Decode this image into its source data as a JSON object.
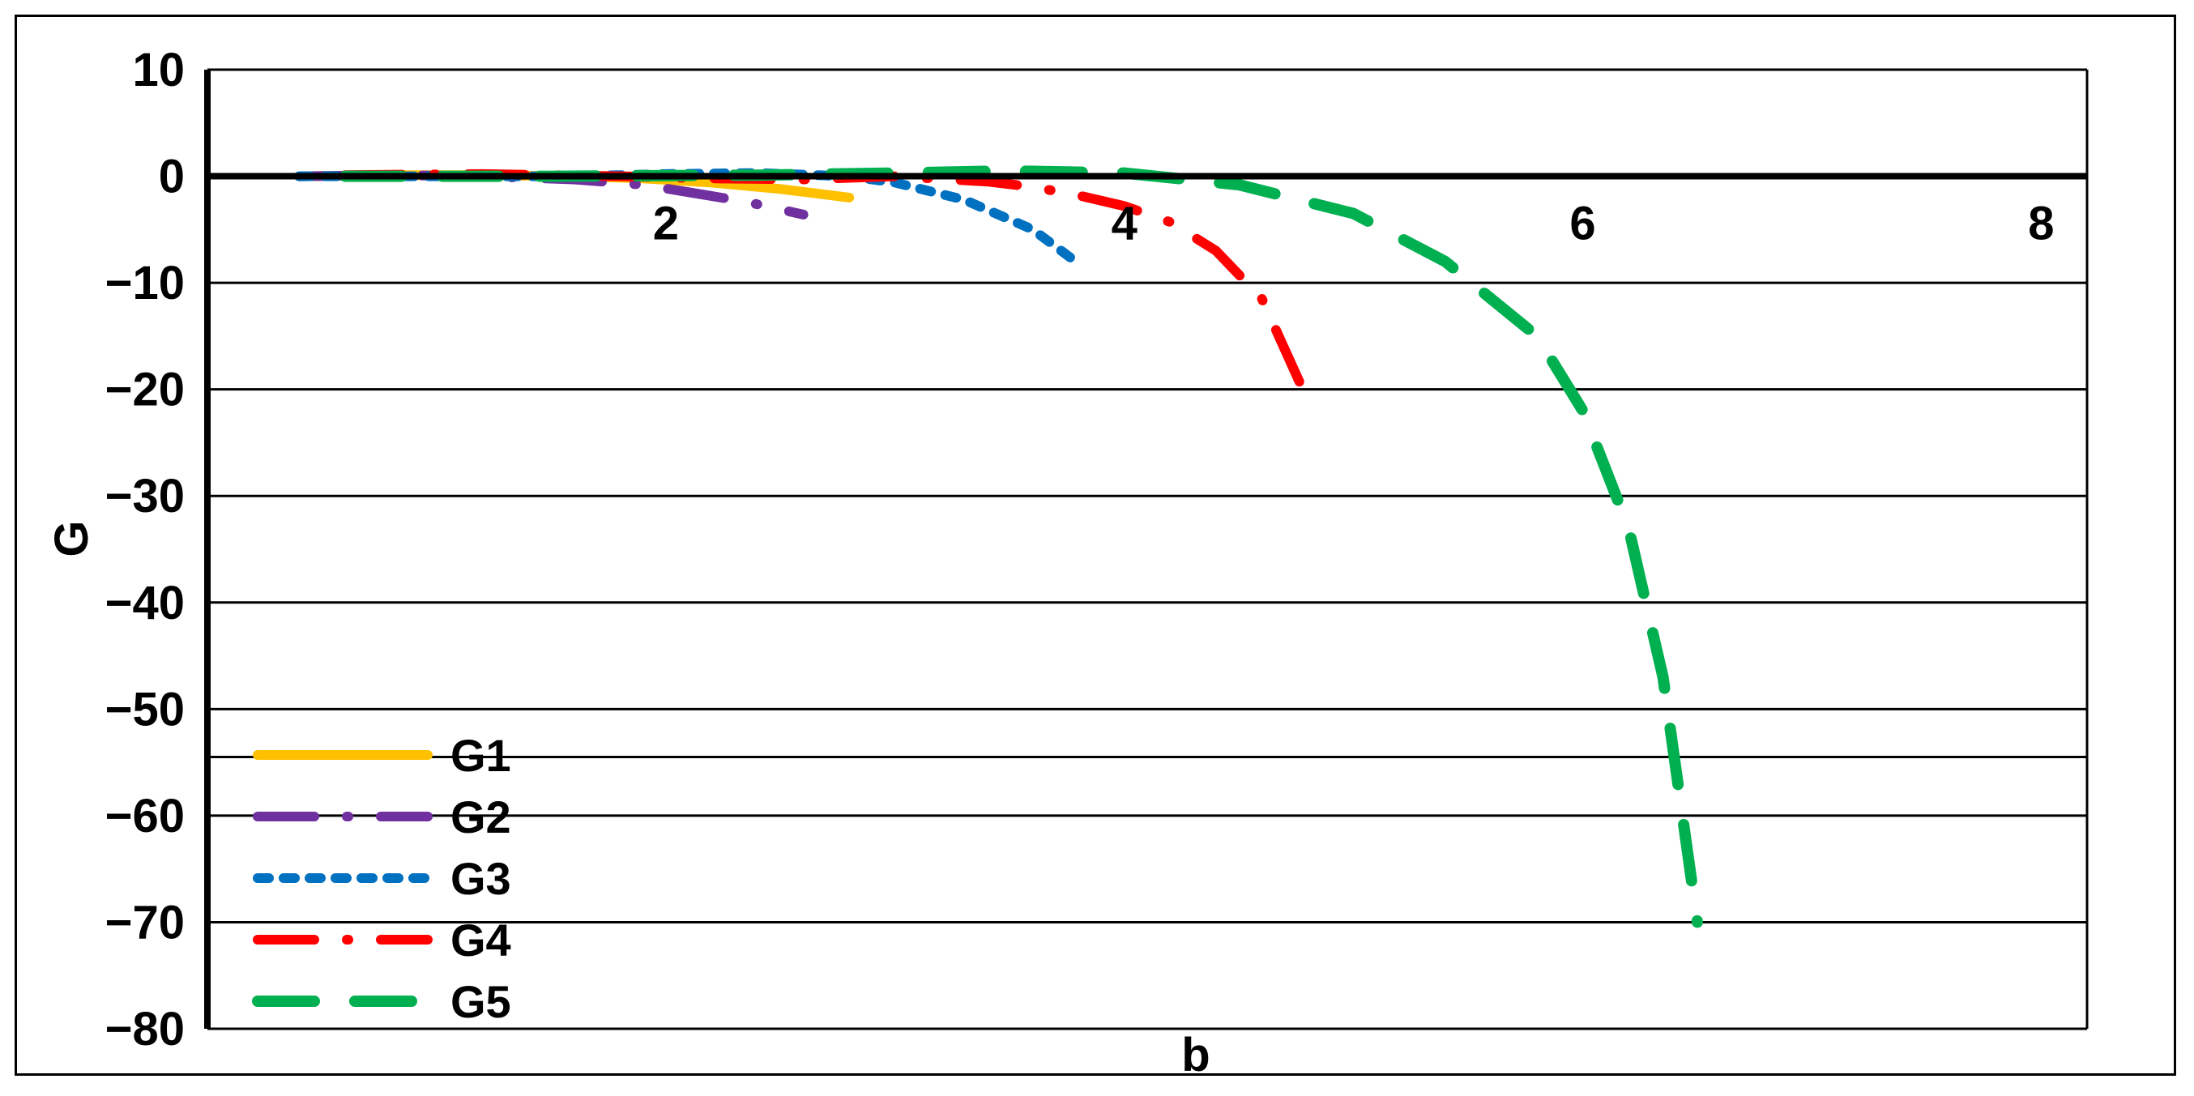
{
  "chart_data": {
    "type": "line",
    "title": "",
    "xlabel": "b",
    "ylabel": "G",
    "xlim": [
      0,
      8.2
    ],
    "ylim": [
      -80,
      10
    ],
    "x_ticks": [
      "2",
      "4",
      "6",
      "8"
    ],
    "y_ticks": [
      "10",
      "0",
      "−10",
      "−20",
      "−30",
      "−40",
      "−50",
      "−60",
      "−70",
      "−80"
    ],
    "extra_gridline_y": -54.5,
    "grid": true,
    "legend_position": "bottom-left",
    "series": [
      {
        "name": "G1",
        "color": "#FFC000",
        "style": "solid",
        "x": [
          0.4,
          0.8,
          1.2,
          1.6,
          1.9,
          2.2,
          2.5,
          2.8
        ],
        "y": [
          0,
          0.1,
          0.1,
          0,
          -0.2,
          -0.6,
          -1.2,
          -2.0
        ]
      },
      {
        "name": "G2",
        "color": "#7030A0",
        "style": "long-dash-dot",
        "x": [
          0.4,
          0.8,
          1.2,
          1.6,
          1.9,
          2.1,
          2.35,
          2.6
        ],
        "y": [
          0,
          0.1,
          0,
          -0.3,
          -0.8,
          -1.5,
          -2.4,
          -3.6
        ]
      },
      {
        "name": "G3",
        "color": "#0070C0",
        "style": "dotted",
        "x": [
          0.4,
          1.0,
          1.6,
          2.0,
          2.4,
          2.8,
          3.0,
          3.3,
          3.6,
          3.8
        ],
        "y": [
          0,
          0,
          0,
          0.2,
          0.3,
          0,
          -0.6,
          -2.2,
          -5.0,
          -8.2
        ]
      },
      {
        "name": "G4",
        "color": "#FF0000",
        "style": "long-dash-dot",
        "x": [
          0.6,
          1.2,
          1.8,
          2.2,
          2.6,
          3.0,
          3.4,
          3.6,
          3.8,
          4.0,
          4.2,
          4.4,
          4.6,
          4.8
        ],
        "y": [
          0.1,
          0.2,
          0,
          -0.2,
          -0.3,
          0,
          -0.5,
          -1.0,
          -1.8,
          -2.8,
          -4.3,
          -7.0,
          -11.5,
          -21.0
        ]
      },
      {
        "name": "G5",
        "color": "#00B050",
        "style": "dashed",
        "x": [
          0.6,
          1.5,
          2.4,
          3.0,
          3.5,
          4.0,
          4.5,
          5.0,
          5.4,
          5.8,
          6.0,
          6.2,
          6.35,
          6.5
        ],
        "y": [
          0,
          0,
          0.1,
          0.3,
          0.5,
          0.3,
          -0.8,
          -3.5,
          -8.0,
          -15.0,
          -22.0,
          -33.0,
          -47.0,
          -70.0
        ]
      }
    ]
  }
}
